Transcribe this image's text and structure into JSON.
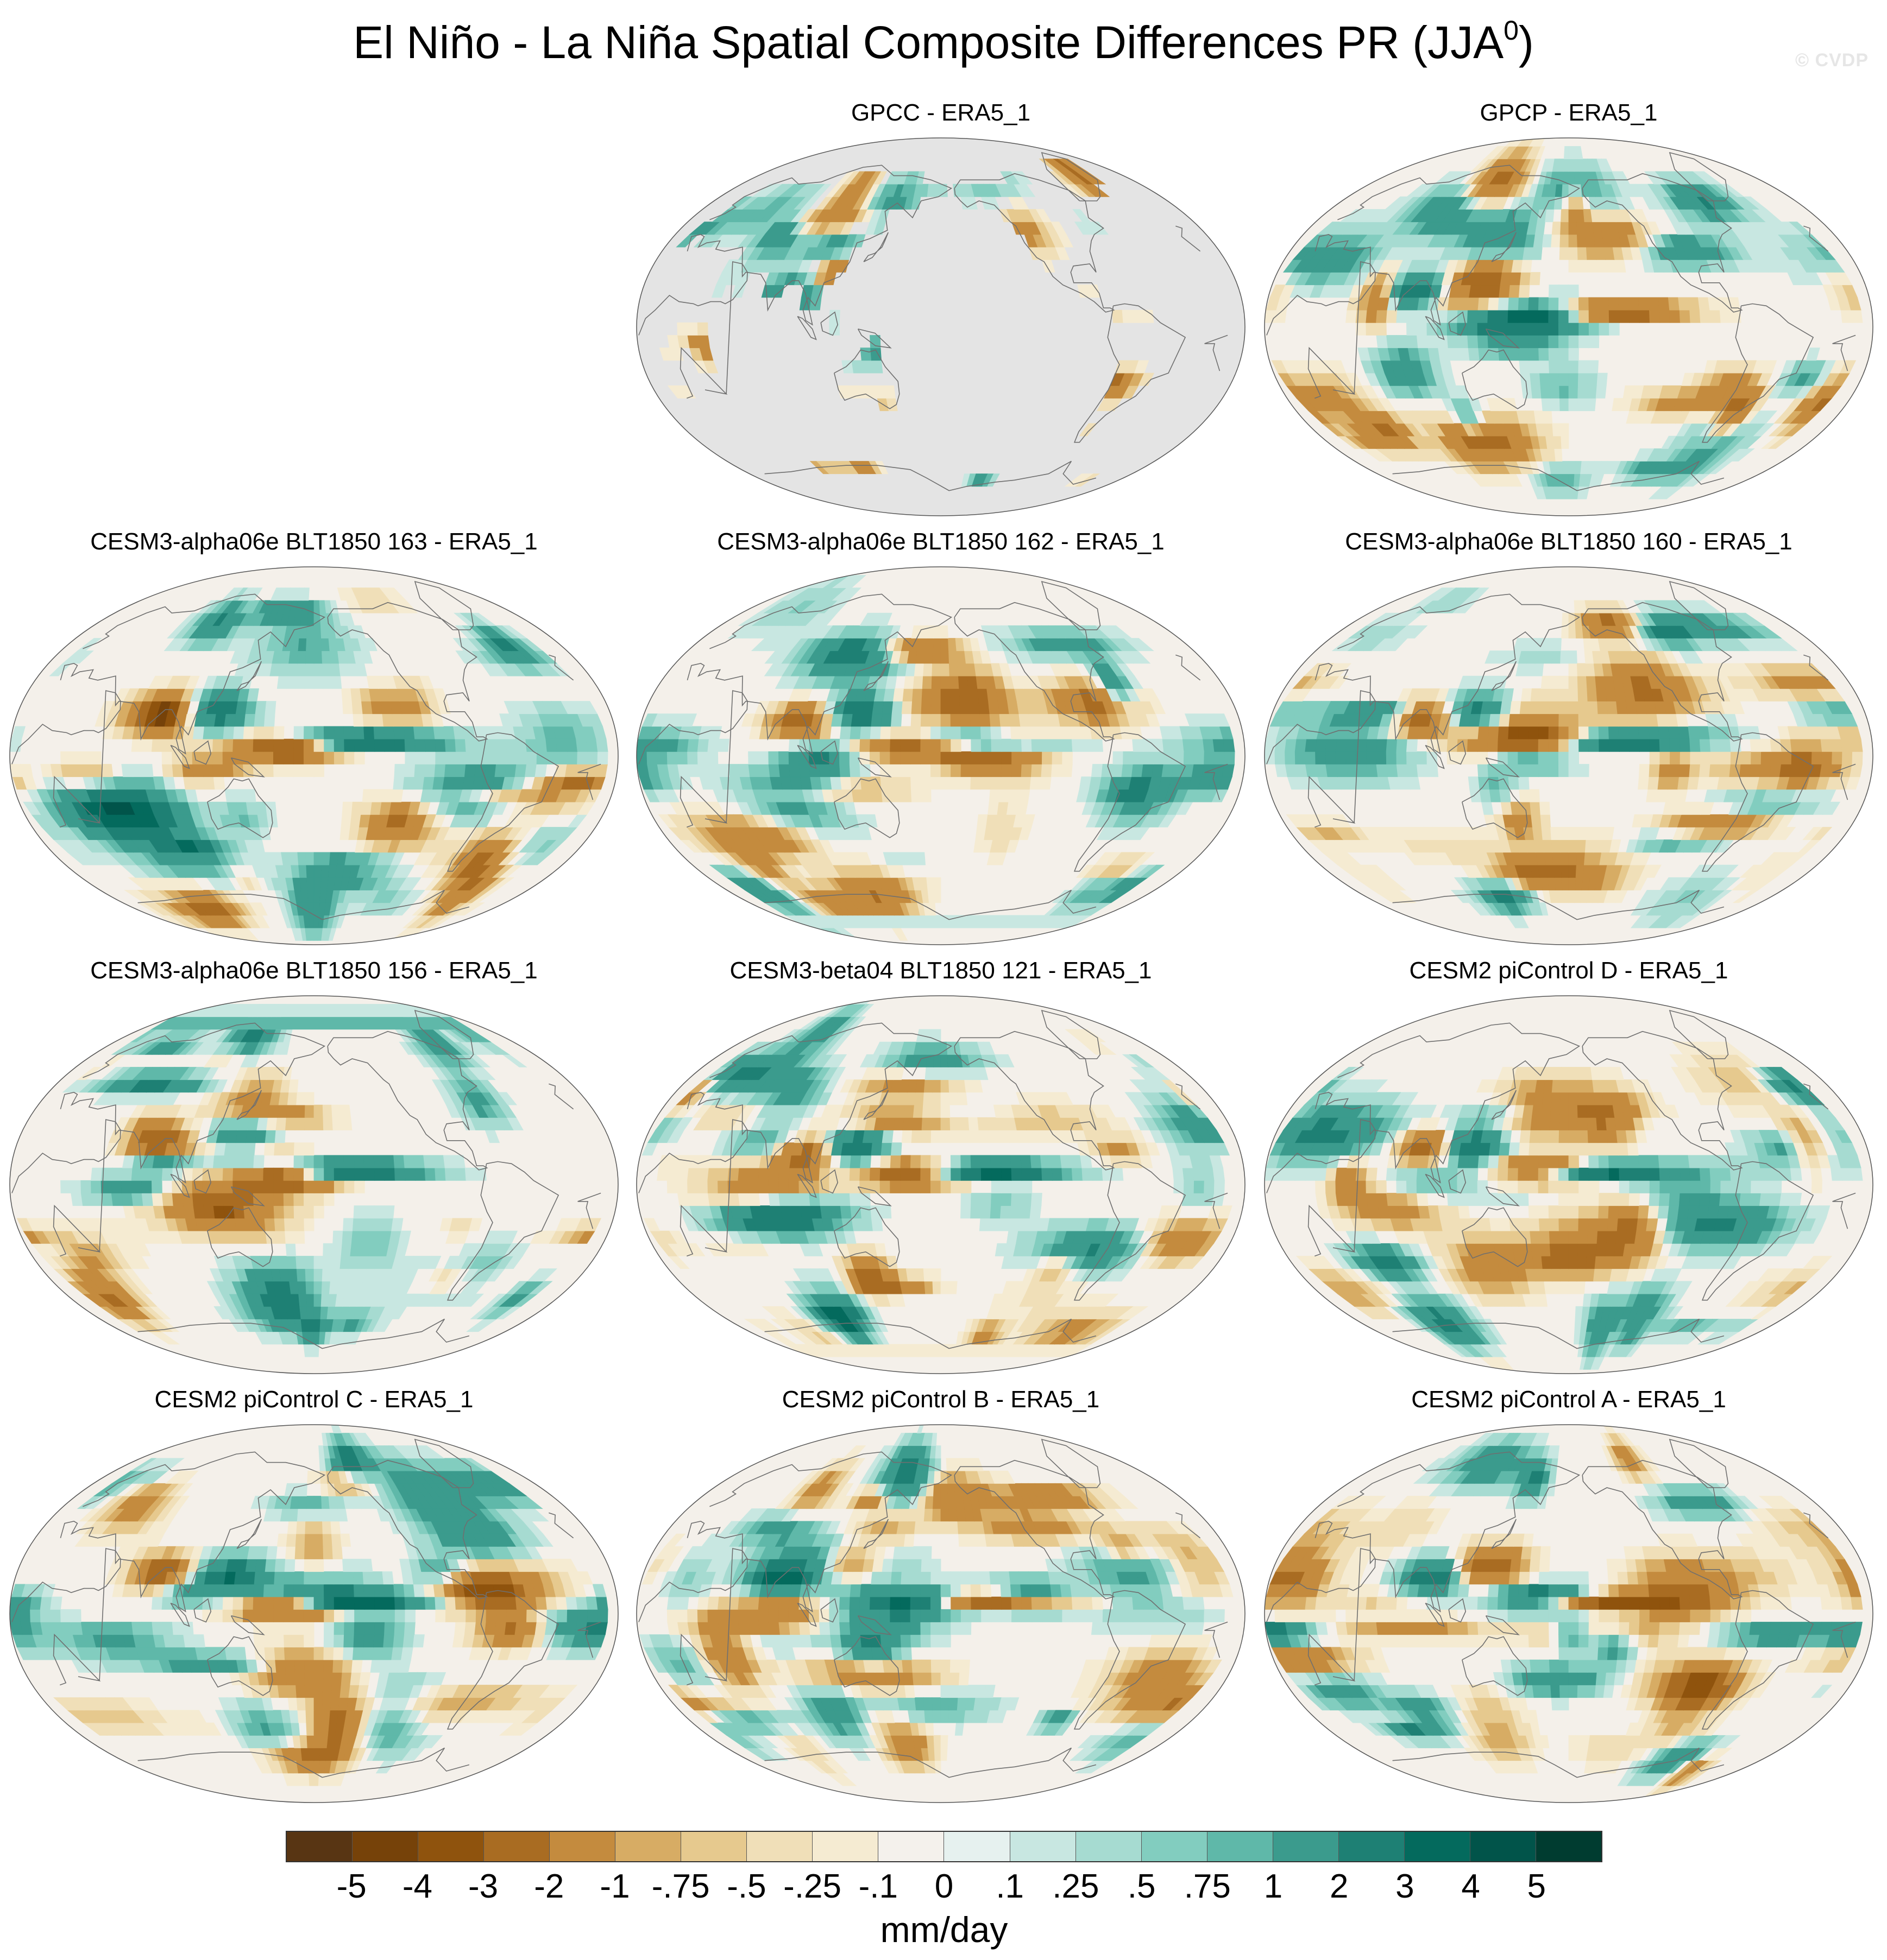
{
  "title_main": "El Niño - La Niña Spatial Composite Differences PR (JJA",
  "title_sup": "0",
  "title_close": ")",
  "watermark": "© CVDP",
  "colors": {
    "land_mask": "#e4e4e4",
    "coast": "#6f6f6f",
    "neutral": "#f4f0ea"
  },
  "chart_data": {
    "type": "heatmap",
    "projection": "Robinson-like global map, Pacific-centered",
    "variable": "PR",
    "season": "JJA0",
    "units": "mm/day",
    "panels": [
      {
        "title": "GPCC - ERA5_1",
        "mask": "land-only"
      },
      {
        "title": "GPCP - ERA5_1",
        "mask": "none"
      },
      {
        "title": "CESM3-alpha06e BLT1850 163 - ERA5_1",
        "mask": "none"
      },
      {
        "title": "CESM3-alpha06e BLT1850 162 - ERA5_1",
        "mask": "none"
      },
      {
        "title": "CESM3-alpha06e BLT1850 160 - ERA5_1",
        "mask": "none"
      },
      {
        "title": "CESM3-alpha06e BLT1850 156 - ERA5_1",
        "mask": "none"
      },
      {
        "title": "CESM3-beta04 BLT1850 121 - ERA5_1",
        "mask": "none"
      },
      {
        "title": "CESM2 piControl D - ERA5_1",
        "mask": "none"
      },
      {
        "title": "CESM2 piControl C - ERA5_1",
        "mask": "none"
      },
      {
        "title": "CESM2 piControl B - ERA5_1",
        "mask": "none"
      },
      {
        "title": "CESM2 piControl A - ERA5_1",
        "mask": "none"
      }
    ],
    "colorbar": {
      "levels": [
        "-5",
        "-4",
        "-3",
        "-2",
        "-1",
        "-.75",
        "-.5",
        "-.25",
        "-.1",
        "0",
        ".1",
        ".25",
        ".5",
        ".75",
        "1",
        "2",
        "3",
        "4",
        "5"
      ],
      "colors": [
        "#583513",
        "#764209",
        "#8f530d",
        "#a96c22",
        "#c48b3e",
        "#d7ac64",
        "#e6c98e",
        "#f0dfb8",
        "#f5ebd2",
        "#f4f1ec",
        "#e6f1ef",
        "#c8e7e1",
        "#a6dbd1",
        "#82cdbf",
        "#5fb8a9",
        "#3b9b8d",
        "#1e8074",
        "#046a5d",
        "#01544a",
        "#003c30"
      ],
      "label": "mm/day"
    }
  }
}
